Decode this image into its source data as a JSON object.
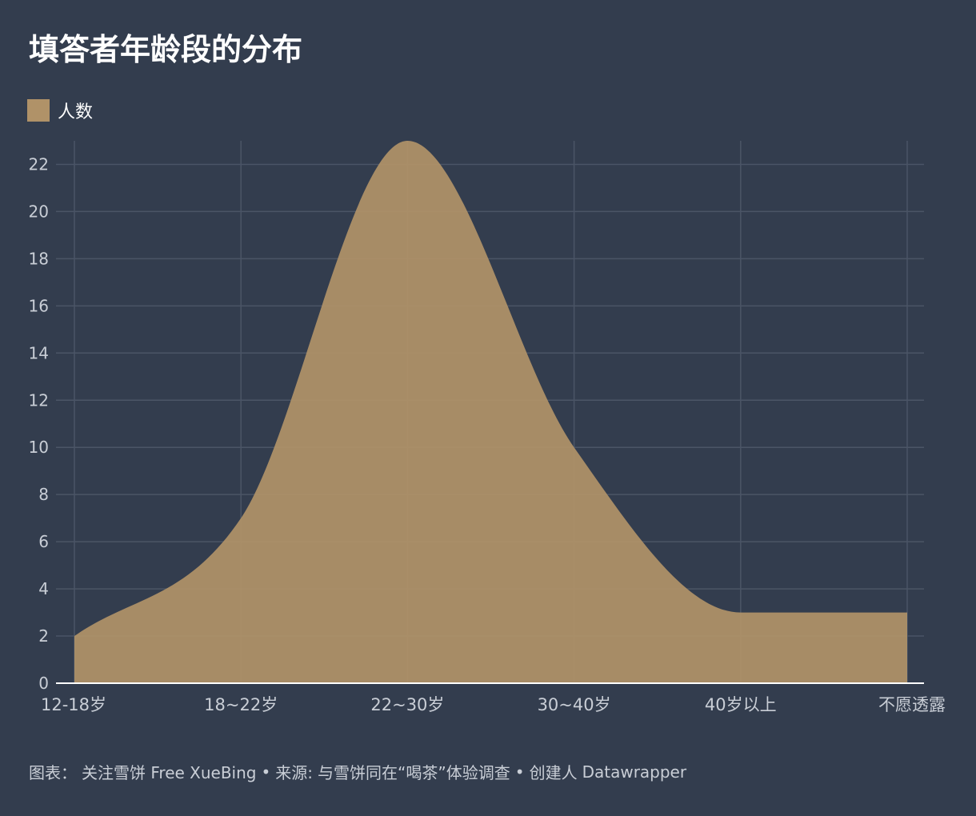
{
  "title": "填答者年龄段的分布",
  "legend": {
    "label": "人数",
    "color": "#b09268"
  },
  "footer": {
    "chart_label": "图表：",
    "chart_author": "关注雪饼 Free XueBing",
    "source_label": "来源:",
    "source": "与雪饼同在“喝茶”体验调查",
    "creator_label": "创建人",
    "creator": "Datawrapper"
  },
  "colors": {
    "background": "#333d4e",
    "area_fill": "#b09268",
    "grid": "#4b5566",
    "axis_text": "#c9ced6",
    "baseline": "#ffffff"
  },
  "chart_data": {
    "type": "area",
    "categories": [
      "12-18岁",
      "18~22岁",
      "22~30岁",
      "30~40岁",
      "40岁以上",
      "不愿透露"
    ],
    "series": [
      {
        "name": "人数",
        "values": [
          2,
          7,
          23,
          10,
          3,
          3
        ]
      }
    ],
    "yticks": [
      0,
      2,
      4,
      6,
      8,
      10,
      12,
      14,
      16,
      18,
      20,
      22
    ],
    "ylim": [
      0,
      23
    ],
    "grid": true,
    "legend_position": "top-left"
  }
}
